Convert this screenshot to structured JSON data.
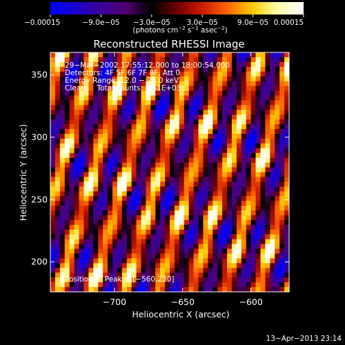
{
  "colorbar": {
    "tick_labels": [
      "−0.00015",
      "−9.0e−05",
      "−3.0e−05",
      "3.0e−05",
      "9.0e−05",
      "0.00015"
    ],
    "tick_values": [
      -0.00015,
      -9e-05,
      -3e-05,
      3e-05,
      9e-05,
      0.00015
    ],
    "vmin": -0.00015,
    "vmax": 0.00015,
    "units": "(photons cm",
    "units_exp1": "−2",
    "units_mid": " s",
    "units_exp2": "−1",
    "units_mid2": " asec",
    "units_exp3": "−2",
    "units_end": ")",
    "colors": [
      "#0000ff",
      "#1a00cc",
      "#3c0099",
      "#500070",
      "#000000",
      "#700000",
      "#cc1a00",
      "#ff6600",
      "#ffcc00",
      "#ffffb0",
      "#ffffff"
    ]
  },
  "chart_data": {
    "type": "heatmap",
    "title": "Reconstructed RHESSI Image",
    "xlabel": "Heliocentric X (arcsec)",
    "ylabel": "Heliocentric Y (arcsec)",
    "xlim": [
      -747,
      -572
    ],
    "ylim": [
      176,
      368
    ],
    "x_ticks": [
      -700,
      -650,
      -600
    ],
    "x_tick_labels": [
      "−700",
      "−650",
      "−600"
    ],
    "y_ticks": [
      200,
      250,
      300,
      350
    ],
    "y_tick_labels": [
      "200",
      "250",
      "300",
      "350"
    ],
    "peak": [
      -560,
      230
    ],
    "annotations": {
      "time": "29−Mar−2002 17:55:12.000 to 18:00:54.000",
      "detectors": "Detectors: 4F 5F 6F 7F 8F, Att 0",
      "energy": "Energy Range: 12.0 − 25.0 keV",
      "method": "Clean     Total counts: 1.41E+03",
      "peak_text": "Position of Peak = [−560,230]"
    }
  },
  "footer": {
    "date": "13−Apr−2013 23:14"
  }
}
